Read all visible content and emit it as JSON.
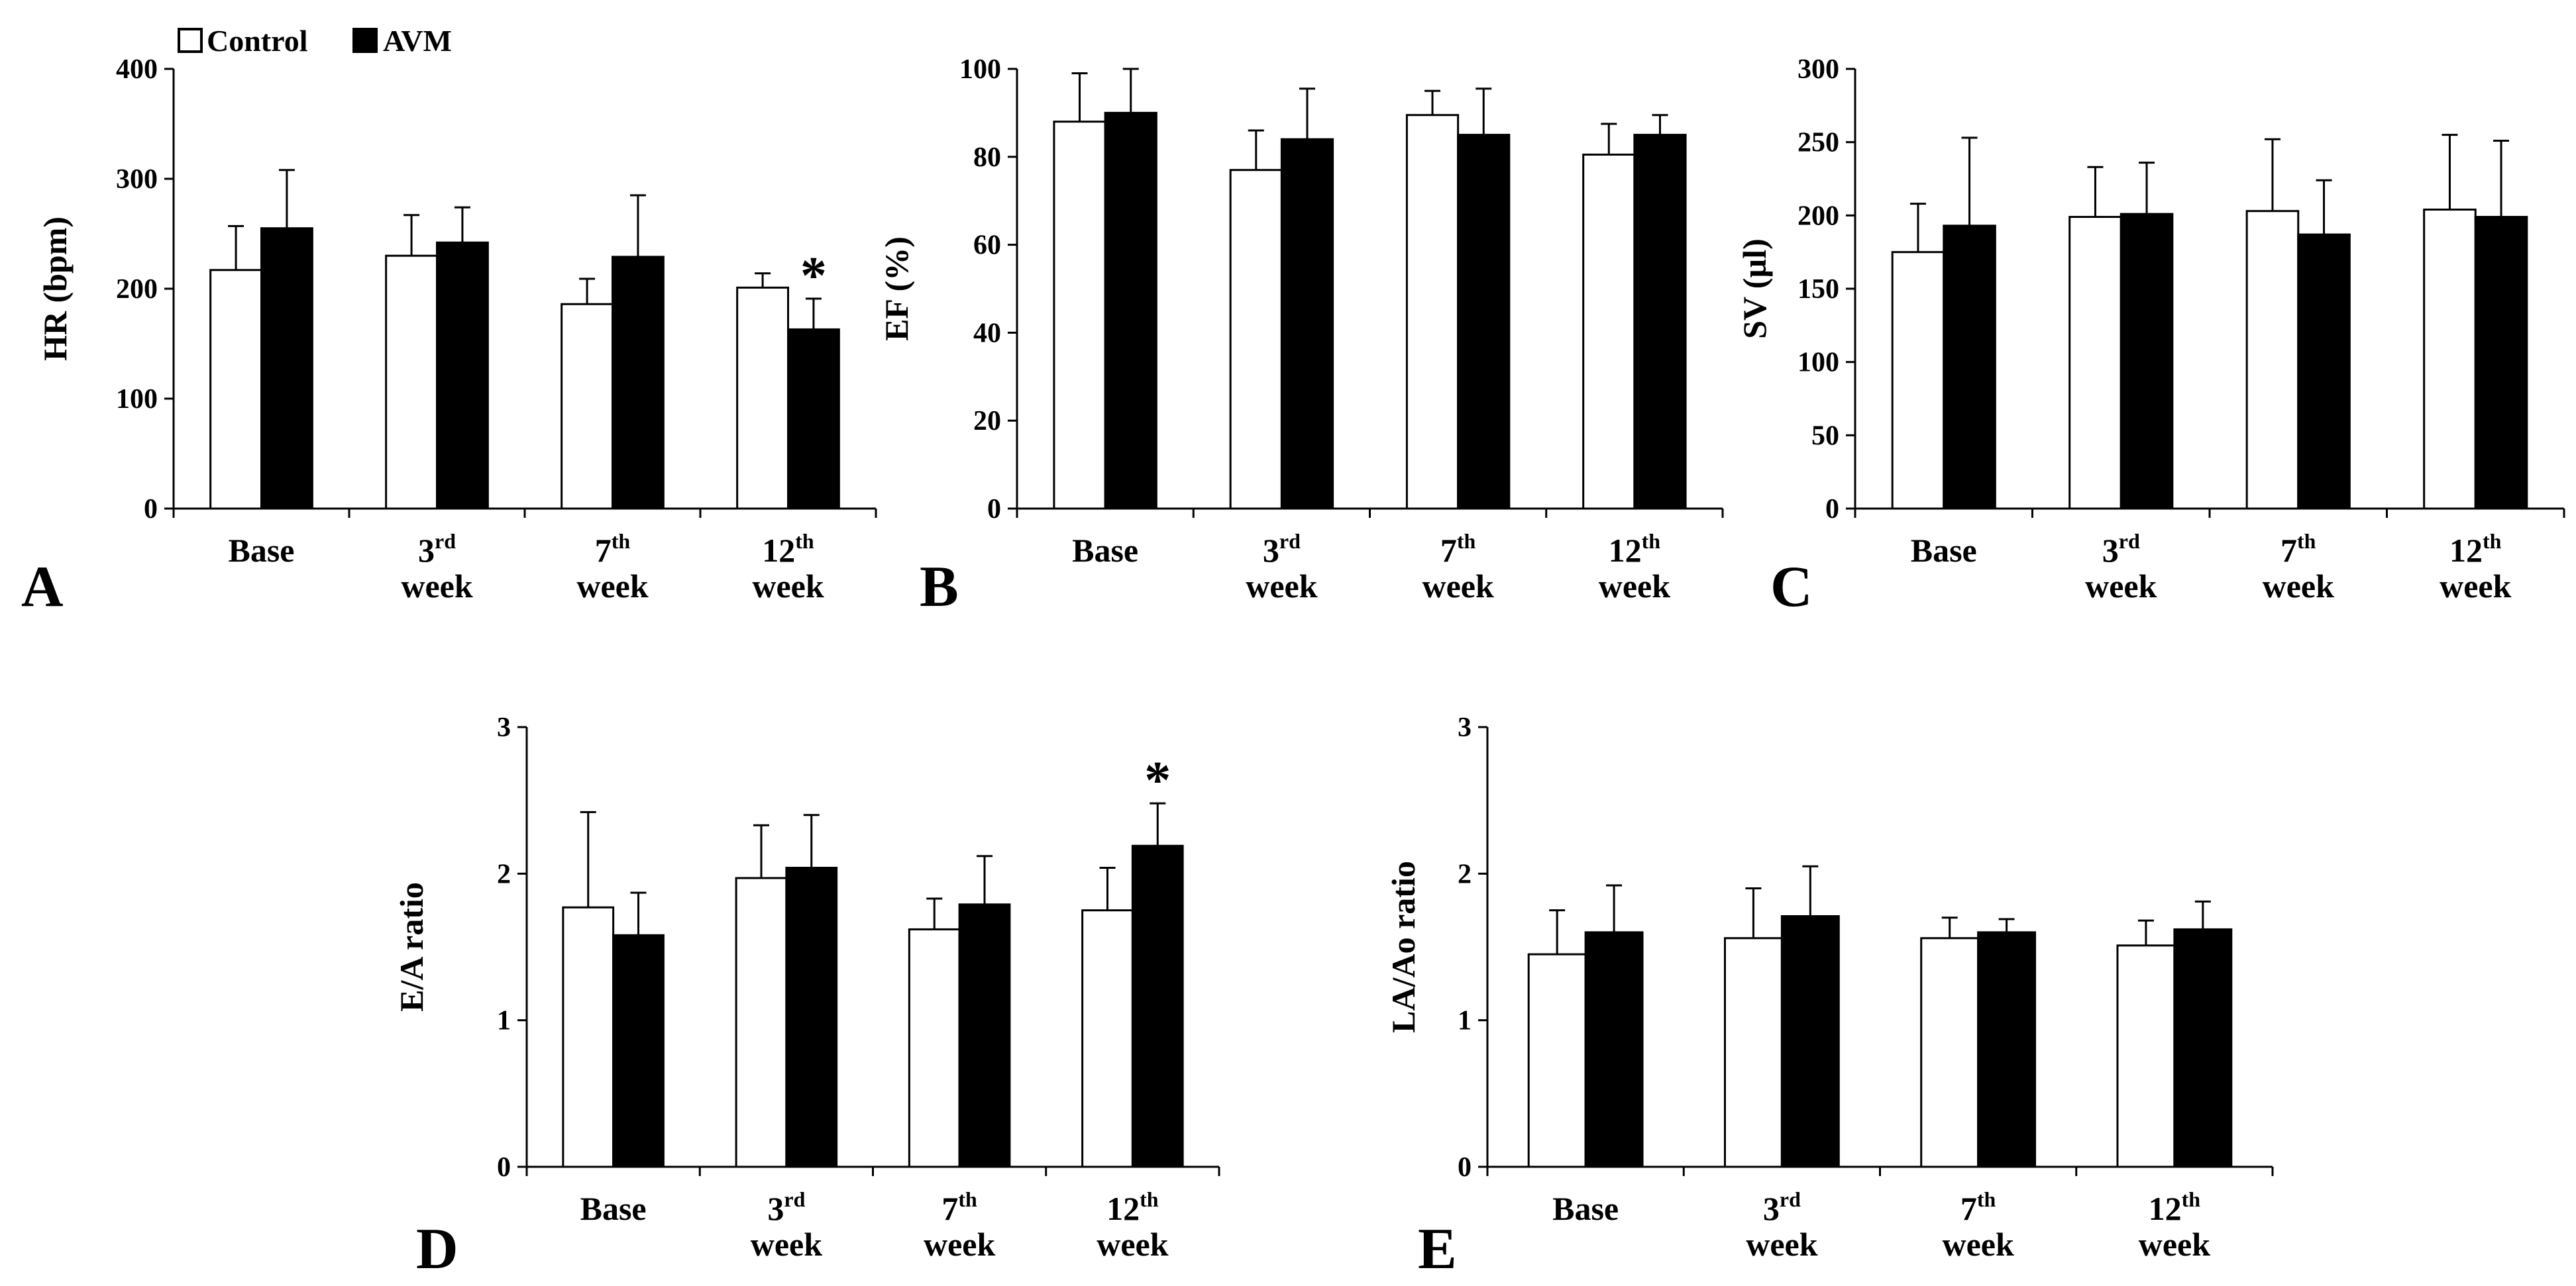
{
  "legend": {
    "entries": [
      {
        "label": "Control",
        "color": "#ffffff"
      },
      {
        "label": "AVM",
        "color": "#000000"
      }
    ]
  },
  "colors": {
    "control": "#ffffff",
    "avm": "#000000",
    "stroke": "#000000"
  },
  "chart_data": [
    {
      "panel": "A",
      "type": "bar",
      "ylabel": "HR (bpm)",
      "ylim": [
        0,
        400
      ],
      "yticks": [
        "0",
        "100",
        "200",
        "300",
        "400"
      ],
      "categories": [
        {
          "main": "Base",
          "sup": "",
          "line2": ""
        },
        {
          "main": "3",
          "sup": "rd",
          "line2": "week"
        },
        {
          "main": "7",
          "sup": "th",
          "line2": "week"
        },
        {
          "main": "12",
          "sup": "th",
          "line2": "week"
        }
      ],
      "series": [
        {
          "name": "Control",
          "values": [
            217,
            230,
            186,
            201
          ],
          "errors": [
            40,
            37,
            23,
            13
          ]
        },
        {
          "name": "AVM",
          "values": [
            255,
            242,
            229,
            163
          ],
          "errors": [
            53,
            32,
            56,
            28
          ]
        }
      ],
      "significance": [
        {
          "series": "AVM",
          "category_index": 3,
          "label": "*"
        }
      ]
    },
    {
      "panel": "B",
      "type": "bar",
      "ylabel": "EF (%)",
      "ylim": [
        0,
        100
      ],
      "yticks": [
        "0",
        "20",
        "40",
        "60",
        "80",
        "100"
      ],
      "categories": [
        {
          "main": "Base",
          "sup": "",
          "line2": ""
        },
        {
          "main": "3",
          "sup": "rd",
          "line2": "week"
        },
        {
          "main": "7",
          "sup": "th",
          "line2": "week"
        },
        {
          "main": "12",
          "sup": "th",
          "line2": "week"
        }
      ],
      "series": [
        {
          "name": "Control",
          "values": [
            88,
            77,
            89.5,
            80.5
          ],
          "errors": [
            11,
            9,
            5.5,
            7
          ]
        },
        {
          "name": "AVM",
          "values": [
            90,
            84,
            85,
            85
          ],
          "errors": [
            10,
            11.5,
            10.5,
            4.5
          ]
        }
      ],
      "significance": []
    },
    {
      "panel": "C",
      "type": "bar",
      "ylabel": "SV (µl)",
      "ylim": [
        0,
        300
      ],
      "yticks": [
        "0",
        "50",
        "100",
        "150",
        "200",
        "250",
        "300"
      ],
      "categories": [
        {
          "main": "Base",
          "sup": "",
          "line2": ""
        },
        {
          "main": "3",
          "sup": "rd",
          "line2": "week"
        },
        {
          "main": "7",
          "sup": "th",
          "line2": "week"
        },
        {
          "main": "12",
          "sup": "th",
          "line2": "week"
        }
      ],
      "series": [
        {
          "name": "Control",
          "values": [
            175,
            199,
            203,
            204
          ],
          "errors": [
            33,
            34,
            49,
            51
          ]
        },
        {
          "name": "AVM",
          "values": [
            193,
            201,
            187,
            199
          ],
          "errors": [
            60,
            35,
            37,
            52
          ]
        }
      ],
      "significance": []
    },
    {
      "panel": "D",
      "type": "bar",
      "ylabel": "E/A ratio",
      "ylim": [
        0,
        3
      ],
      "yticks": [
        "0",
        "1",
        "2",
        "3"
      ],
      "categories": [
        {
          "main": "Base",
          "sup": "",
          "line2": ""
        },
        {
          "main": "3",
          "sup": "rd",
          "line2": "week"
        },
        {
          "main": "7",
          "sup": "th",
          "line2": "week"
        },
        {
          "main": "12",
          "sup": "th",
          "line2": "week"
        }
      ],
      "series": [
        {
          "name": "Control",
          "values": [
            1.77,
            1.97,
            1.62,
            1.75
          ],
          "errors": [
            0.65,
            0.36,
            0.21,
            0.29
          ]
        },
        {
          "name": "AVM",
          "values": [
            1.58,
            2.04,
            1.79,
            2.19
          ],
          "errors": [
            0.29,
            0.36,
            0.33,
            0.29
          ]
        }
      ],
      "significance": [
        {
          "series": "AVM",
          "category_index": 3,
          "label": "*"
        }
      ]
    },
    {
      "panel": "E",
      "type": "bar",
      "ylabel": "LA/Ao ratio",
      "ylim": [
        0,
        3
      ],
      "yticks": [
        "0",
        "1",
        "2",
        "3"
      ],
      "categories": [
        {
          "main": "Base",
          "sup": "",
          "line2": ""
        },
        {
          "main": "3",
          "sup": "rd",
          "line2": "week"
        },
        {
          "main": "7",
          "sup": "th",
          "line2": "week"
        },
        {
          "main": "12",
          "sup": "th",
          "line2": "week"
        }
      ],
      "series": [
        {
          "name": "Control",
          "values": [
            1.45,
            1.56,
            1.56,
            1.51
          ],
          "errors": [
            0.3,
            0.34,
            0.14,
            0.17
          ]
        },
        {
          "name": "AVM",
          "values": [
            1.6,
            1.71,
            1.6,
            1.62
          ],
          "errors": [
            0.32,
            0.34,
            0.09,
            0.19
          ]
        }
      ],
      "significance": []
    }
  ]
}
